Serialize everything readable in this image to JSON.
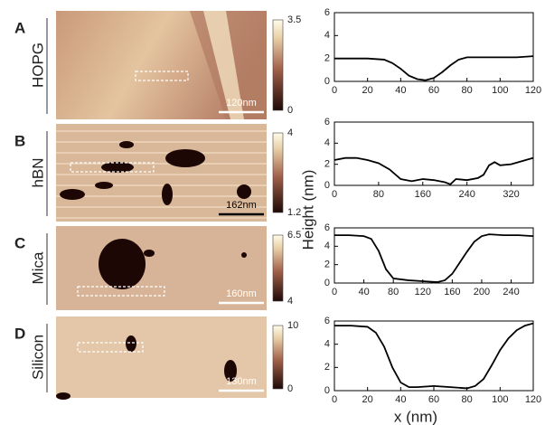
{
  "figure": {
    "ylabel": "Height (nm)",
    "xlabel": "x (nm)"
  },
  "panels": [
    {
      "letter": "A",
      "sample": "HOPG",
      "scale_bar": "120nm",
      "colorbar_max": 3.5,
      "colorbar_min": 0
    },
    {
      "letter": "B",
      "sample": "hBN",
      "scale_bar": "162nm",
      "colorbar_max": 4,
      "colorbar_min": 1.2
    },
    {
      "letter": "C",
      "sample": "Mica",
      "scale_bar": "160nm",
      "colorbar_max": 6.5,
      "colorbar_min": 4
    },
    {
      "letter": "D",
      "sample": "Silicon",
      "scale_bar": "130nm",
      "colorbar_max": 10,
      "colorbar_min": 0
    }
  ],
  "chart_data": [
    {
      "type": "line",
      "color": "#000000",
      "x": [
        0,
        10,
        20,
        30,
        35,
        40,
        45,
        50,
        55,
        60,
        65,
        70,
        75,
        80,
        90,
        100,
        110,
        120
      ],
      "values": [
        2,
        2,
        2,
        1.9,
        1.6,
        1.1,
        0.5,
        0.2,
        0.1,
        0.3,
        0.8,
        1.4,
        1.9,
        2.1,
        2.1,
        2.1,
        2.1,
        2.2
      ],
      "xlim": [
        0,
        120
      ],
      "xticks": [
        0,
        20,
        40,
        60,
        80,
        100,
        120
      ],
      "ylim": [
        0,
        6
      ],
      "yticks": [
        0,
        2,
        4,
        6
      ]
    },
    {
      "type": "line",
      "color": "#000000",
      "x": [
        0,
        20,
        40,
        60,
        80,
        100,
        120,
        140,
        160,
        180,
        200,
        210,
        220,
        240,
        260,
        270,
        280,
        290,
        300,
        320,
        340,
        360
      ],
      "values": [
        2.4,
        2.6,
        2.6,
        2.4,
        2.1,
        1.5,
        0.6,
        0.4,
        0.6,
        0.5,
        0.3,
        0.1,
        0.6,
        0.5,
        0.7,
        1.0,
        1.9,
        2.2,
        1.9,
        2.0,
        2.3,
        2.6
      ],
      "xlim": [
        0,
        360
      ],
      "xticks": [
        0,
        80,
        160,
        240,
        320
      ],
      "ylim": [
        0,
        6
      ],
      "yticks": [
        0,
        2,
        4,
        6
      ]
    },
    {
      "type": "line",
      "color": "#000000",
      "x": [
        0,
        20,
        40,
        50,
        60,
        70,
        80,
        100,
        120,
        140,
        150,
        160,
        170,
        180,
        190,
        200,
        210,
        230,
        250,
        270
      ],
      "values": [
        5.2,
        5.2,
        5.1,
        4.8,
        3.5,
        1.5,
        0.5,
        0.3,
        0.2,
        0.1,
        0.3,
        1.0,
        2.2,
        3.4,
        4.5,
        5.1,
        5.3,
        5.2,
        5.2,
        5.1
      ],
      "xlim": [
        0,
        270
      ],
      "xticks": [
        0,
        40,
        80,
        120,
        160,
        200,
        240
      ],
      "ylim": [
        0,
        6
      ],
      "yticks": [
        0,
        2,
        4,
        6
      ]
    },
    {
      "type": "line",
      "color": "#000000",
      "x": [
        0,
        10,
        20,
        25,
        30,
        35,
        40,
        45,
        50,
        60,
        70,
        80,
        85,
        90,
        95,
        100,
        105,
        110,
        115,
        120
      ],
      "values": [
        5.6,
        5.6,
        5.5,
        5.0,
        3.8,
        2.0,
        0.7,
        0.3,
        0.3,
        0.4,
        0.3,
        0.2,
        0.4,
        1.0,
        2.2,
        3.5,
        4.5,
        5.2,
        5.6,
        5.8
      ],
      "xlim": [
        0,
        120
      ],
      "xticks": [
        0,
        20,
        40,
        60,
        80,
        100,
        120
      ],
      "ylim": [
        0,
        6
      ],
      "yticks": [
        0,
        2,
        4,
        6
      ]
    }
  ]
}
